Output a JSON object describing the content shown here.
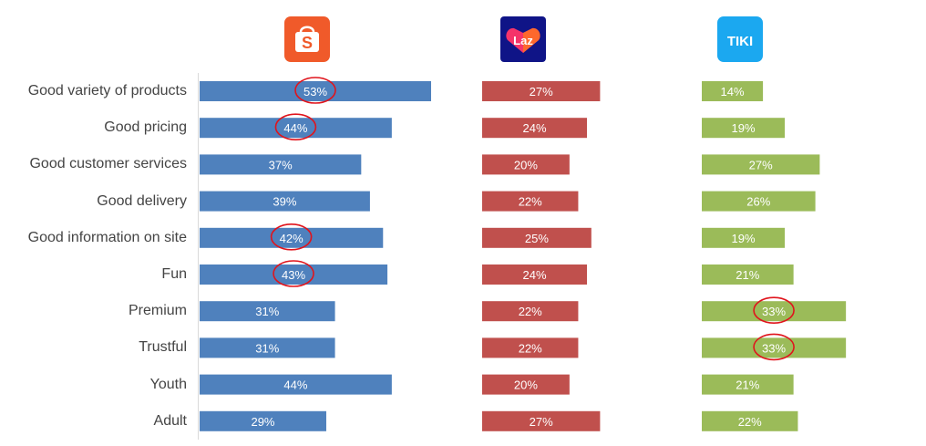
{
  "chart_data": {
    "type": "bar",
    "orientation": "horizontal",
    "title": "",
    "xlabel": "",
    "ylabel": "",
    "xlim": [
      0,
      60
    ],
    "grid": false,
    "legend": "none (brand logos above each panel)",
    "categories": [
      "Good variety of products",
      "Good pricing",
      "Good customer services",
      "Good delivery",
      "Good information on site",
      "Fun",
      "Premium",
      "Trustful",
      "Youth",
      "Adult"
    ],
    "series": [
      {
        "name": "Shopee",
        "logo_text": "S",
        "color": "#4f81bd",
        "values": [
          53,
          44,
          37,
          39,
          42,
          43,
          31,
          31,
          44,
          29
        ],
        "labels": [
          "53%",
          "44%",
          "37%",
          "39%",
          "42%",
          "43%",
          "31%",
          "31%",
          "44%",
          "29%"
        ],
        "circled": [
          0,
          1,
          4,
          5
        ]
      },
      {
        "name": "Lazada",
        "logo_text": "Laz",
        "color": "#c0504d",
        "values": [
          27,
          24,
          20,
          22,
          25,
          24,
          22,
          22,
          20,
          27
        ],
        "labels": [
          "27%",
          "24%",
          "20%",
          "22%",
          "25%",
          "24%",
          "22%",
          "22%",
          "20%",
          "27%"
        ],
        "circled": []
      },
      {
        "name": "Tiki",
        "logo_text": "TIKI",
        "color": "#9bbb59",
        "values": [
          14,
          19,
          27,
          26,
          19,
          21,
          33,
          33,
          21,
          22
        ],
        "labels": [
          "14%",
          "19%",
          "27%",
          "26%",
          "19%",
          "21%",
          "33%",
          "33%",
          "21%",
          "22%"
        ],
        "circled": [
          6,
          7
        ]
      }
    ]
  },
  "colors": {
    "highlight_circle": "#e0141c",
    "label_text": "#ffffff",
    "category_text": "#444444",
    "axis_line": "#d9d9d9",
    "shopee_logo": "#f05a2a",
    "lazada_logo_bg": "#0f1487",
    "lazada_heart": "#f5346a",
    "tiki_logo": "#1ba8f0"
  }
}
